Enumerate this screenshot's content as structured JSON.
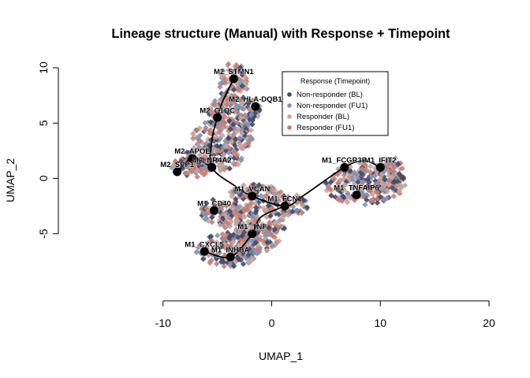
{
  "chart_data": {
    "type": "scatter",
    "title": "Lineage structure (Manual) with Response + Timepoint",
    "xlabel": "UMAP_1",
    "ylabel": "UMAP_2",
    "xlim": [
      -11,
      20
    ],
    "ylim": [
      -9.5,
      11
    ],
    "xticks": [
      -10,
      0,
      10,
      20
    ],
    "yticks": [
      -5,
      0,
      5,
      10
    ],
    "xtick_labels": [
      "-10",
      "0",
      "10",
      "20"
    ],
    "ytick_labels": [
      "-5",
      "0",
      "5",
      "10"
    ],
    "grid": false,
    "legend": {
      "title": "Response (Timepoint)",
      "placement": "top-right",
      "entries": [
        {
          "name": "Non-responder (BL)",
          "color": "#3d4a6b"
        },
        {
          "name": "Non-responder (FU1)",
          "color": "#7f93b5"
        },
        {
          "name": "Responder (BL)",
          "color": "#c4a49d"
        },
        {
          "name": "Responder (FU1)",
          "color": "#c77d72"
        }
      ]
    },
    "clusters": [
      {
        "cx": -3.5,
        "cy": 8.5,
        "rx": 1.3,
        "ry": 2.0
      },
      {
        "cx": -3.5,
        "cy": 6.0,
        "rx": 2.6,
        "ry": 1.5
      },
      {
        "cx": -4.5,
        "cy": 3.8,
        "rx": 2.8,
        "ry": 1.6
      },
      {
        "cx": -5.5,
        "cy": 1.8,
        "rx": 2.8,
        "ry": 1.2
      },
      {
        "cx": -7.5,
        "cy": 1.0,
        "rx": 1.7,
        "ry": 1.0
      },
      {
        "cx": -1.5,
        "cy": -1.4,
        "rx": 2.5,
        "ry": 0.9
      },
      {
        "cx": 1.5,
        "cy": -2.4,
        "rx": 1.9,
        "ry": 1.0
      },
      {
        "cx": -4.5,
        "cy": -3.0,
        "rx": 2.0,
        "ry": 1.3
      },
      {
        "cx": -1.8,
        "cy": -4.5,
        "rx": 3.0,
        "ry": 2.3
      },
      {
        "cx": -4.0,
        "cy": -6.5,
        "rx": 3.0,
        "ry": 1.5
      },
      {
        "cx": 8.5,
        "cy": -0.5,
        "rx": 3.8,
        "ry": 1.9
      },
      {
        "cx": 11.0,
        "cy": 0.5,
        "rx": 1.2,
        "ry": 1.4
      }
    ],
    "nodes": [
      {
        "label": "M2_STMN1",
        "x": -3.5,
        "y": 9.0
      },
      {
        "label": "M2_C1QC",
        "x": -5.0,
        "y": 5.5
      },
      {
        "label": "M2_HLA-DQB1",
        "x": -1.5,
        "y": 6.5
      },
      {
        "label": "M2_APOE",
        "x": -7.3,
        "y": 1.8
      },
      {
        "label": "M2_NR4A2",
        "x": -5.5,
        "y": 1.0
      },
      {
        "label": "M2_SPP1",
        "x": -8.7,
        "y": 0.6
      },
      {
        "label": "M1_VCAN",
        "x": -1.8,
        "y": -1.6
      },
      {
        "label": "M1_FCN1",
        "x": 1.2,
        "y": -2.5
      },
      {
        "label": "M1_CD40",
        "x": -5.3,
        "y": -2.9
      },
      {
        "label": "M1_TNF",
        "x": -1.8,
        "y": -5.0
      },
      {
        "label": "M1_CXCL5",
        "x": -6.2,
        "y": -6.6
      },
      {
        "label": "M1_INHBA",
        "x": -3.8,
        "y": -7.1
      },
      {
        "label": "M1_FCGR3B",
        "x": 6.7,
        "y": 1.0
      },
      {
        "label": "M1_IFIT2",
        "x": 10.0,
        "y": 1.0
      },
      {
        "label": "M1_TNFAIP6",
        "x": 7.8,
        "y": -1.5
      }
    ],
    "curves": [
      [
        [
          -3.5,
          9.0
        ],
        [
          -4.5,
          7.0
        ],
        [
          -5.0,
          5.5
        ],
        [
          -5.5,
          3.5
        ],
        [
          -5.5,
          1.0
        ],
        [
          -3.5,
          -0.6
        ],
        [
          -1.8,
          -1.6
        ],
        [
          1.2,
          -2.5
        ],
        [
          3.0,
          -1.5
        ],
        [
          6.7,
          1.0
        ],
        [
          8.5,
          1.6
        ],
        [
          10.0,
          1.0
        ]
      ],
      [
        [
          -8.7,
          0.6
        ],
        [
          -7.3,
          1.8
        ],
        [
          -5.5,
          1.0
        ]
      ],
      [
        [
          1.2,
          -2.5
        ],
        [
          -1.0,
          -3.5
        ],
        [
          -1.8,
          -5.0
        ],
        [
          -3.8,
          -7.1
        ],
        [
          -6.2,
          -6.6
        ]
      ]
    ]
  }
}
